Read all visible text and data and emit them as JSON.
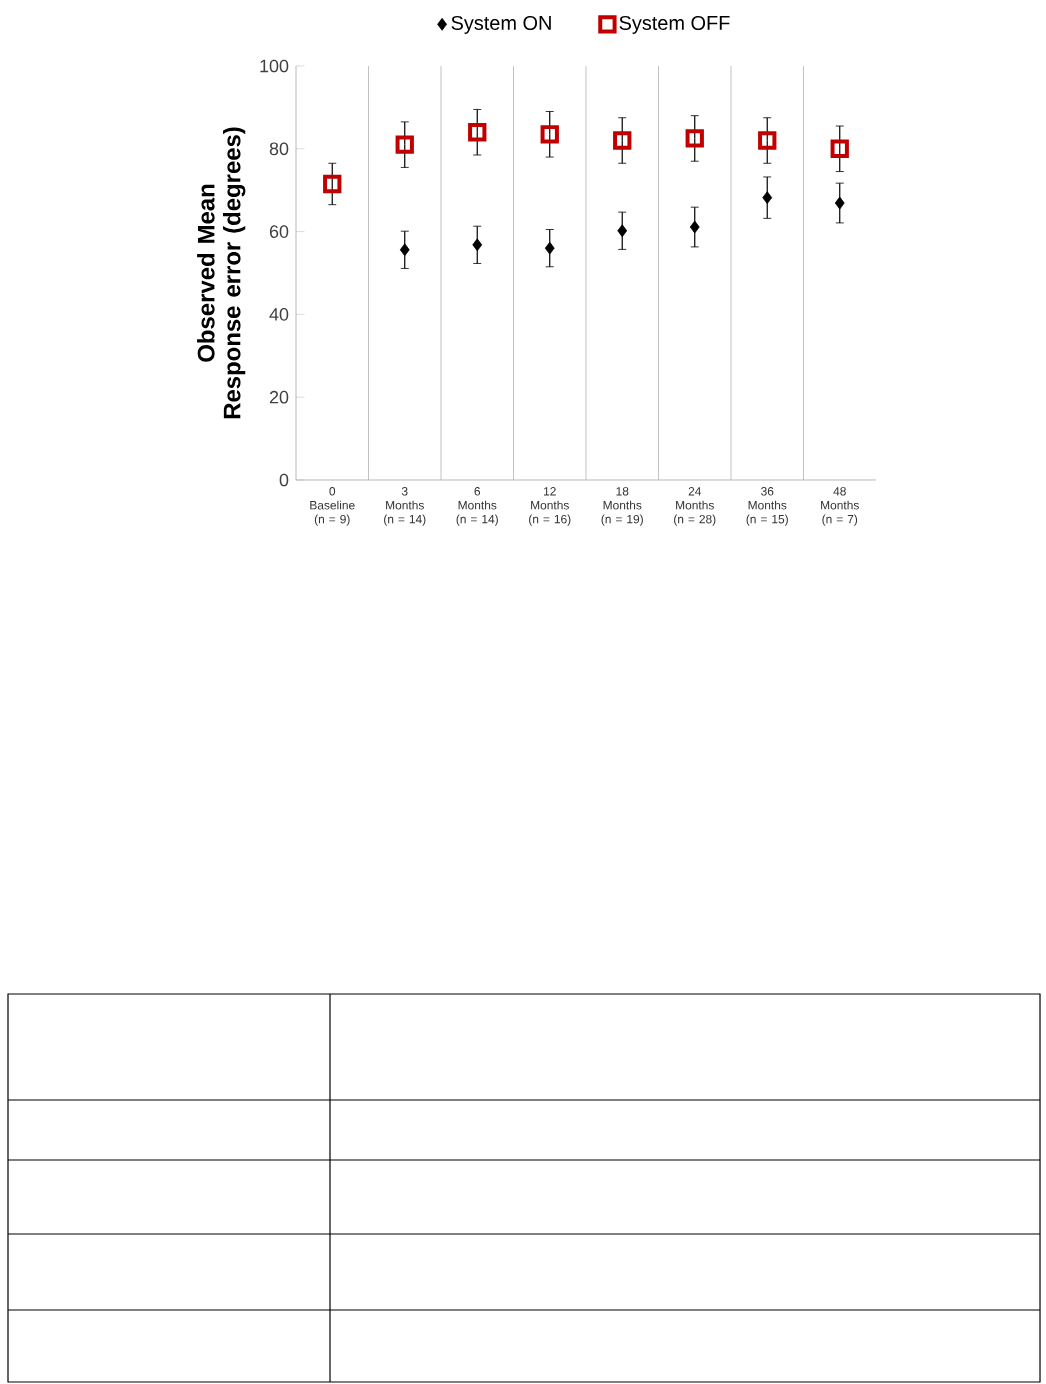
{
  "chart_data": {
    "type": "scatter",
    "ylabel": "Observed Mean Response error (degrees)",
    "categories": [
      "0 Baseline (n = 9)",
      "3 Months (n = 14)",
      "6 Months (n = 14)",
      "12 Months (n = 16)",
      "18 Months (n = 19)",
      "24 Months (n = 28)",
      "36 Months (n = 15)",
      "48 Months (n = 7)"
    ],
    "ylim": [
      0,
      100
    ],
    "yticks": [
      0,
      20,
      40,
      60,
      80,
      100
    ],
    "grid": "x",
    "legend": "top",
    "series": [
      {
        "name": "System ON",
        "color": "#000000",
        "marker": "diamond",
        "values": [
          null,
          55.6,
          56.8,
          56,
          60.2,
          61.1,
          68.2,
          66.9
        ],
        "errors": [
          null,
          4.5,
          4.5,
          4.5,
          4.5,
          4.8,
          5,
          4.8
        ]
      },
      {
        "name": "System OFF",
        "color": "#c00000",
        "marker": "square",
        "values": [
          71.5,
          81,
          84,
          83.5,
          82,
          82.5,
          82,
          80
        ],
        "errors": [
          5,
          5.5,
          5.5,
          5.5,
          5.5,
          5.5,
          5.5,
          5.5
        ]
      }
    ]
  }
}
